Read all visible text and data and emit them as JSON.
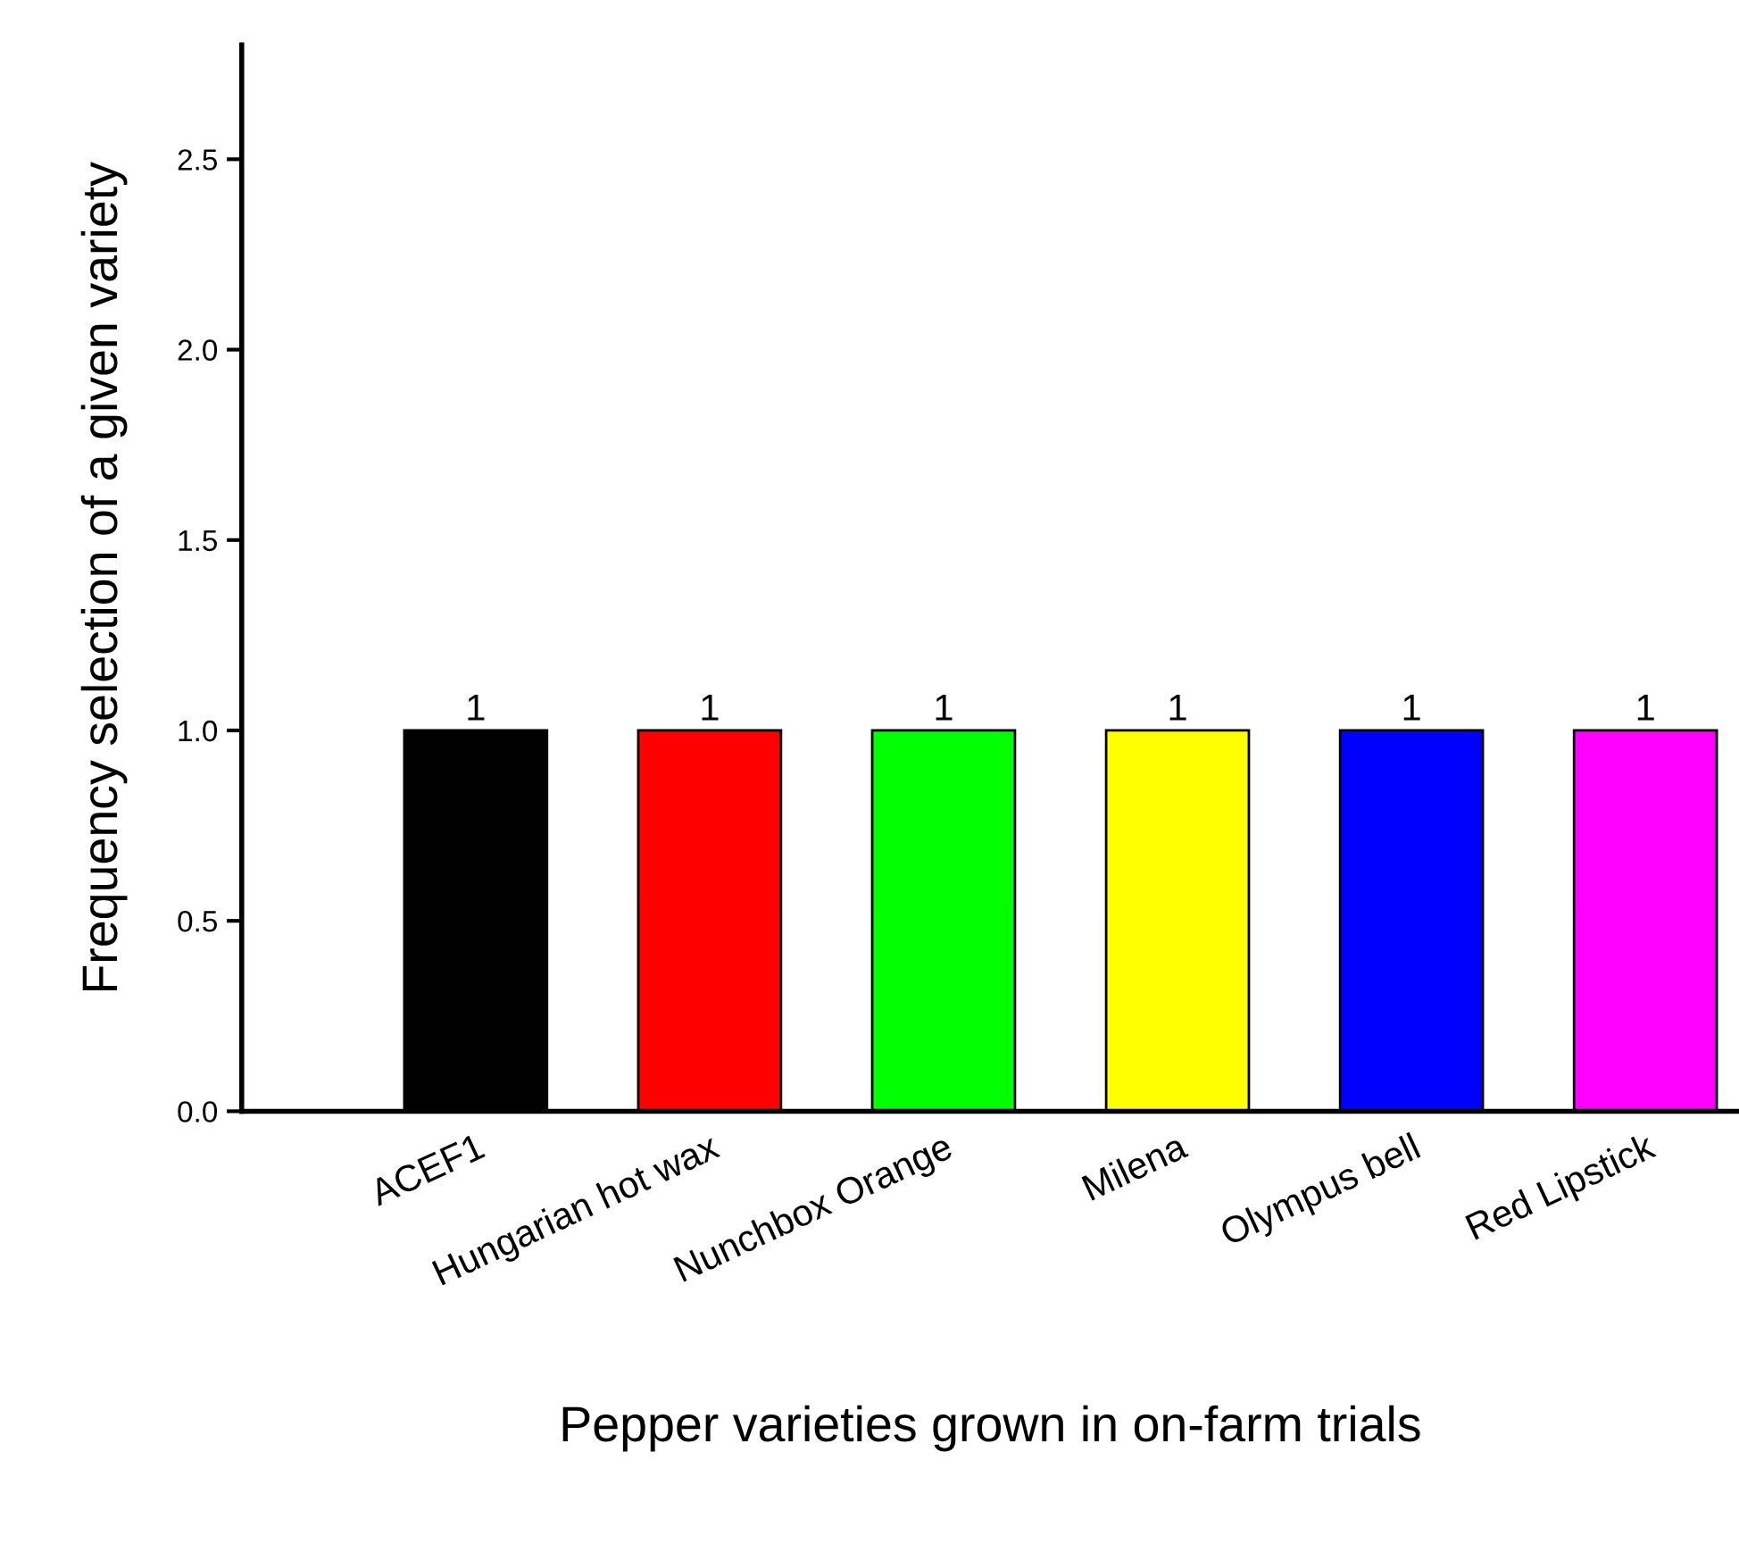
{
  "chart_data": {
    "type": "bar",
    "xlabel": "Pepper varieties grown in on-farm trials",
    "ylabel": "Frequency selection of a given variety",
    "categories": [
      "ACEF1",
      "Hungarian hot wax",
      "Nunchbox Orange",
      "Milena",
      "Olympus bell",
      "Red Lipstick"
    ],
    "values": [
      1,
      1,
      1,
      1,
      1,
      1
    ],
    "colors": [
      "#000000",
      "#ff0000",
      "#00ff00",
      "#ffff00",
      "#0000ff",
      "#ff00ff"
    ],
    "ylim": [
      0,
      2.8
    ],
    "yticks": [
      {
        "value": 0,
        "label": "0.0"
      },
      {
        "value": 0.5,
        "label": "0.5"
      },
      {
        "value": 1,
        "label": "1.0"
      },
      {
        "value": 1.5,
        "label": "1.5"
      },
      {
        "value": 2,
        "label": "2.0"
      },
      {
        "value": 2.5,
        "label": "2.5"
      }
    ],
    "data_labels": true,
    "grid": false,
    "legend": false
  }
}
